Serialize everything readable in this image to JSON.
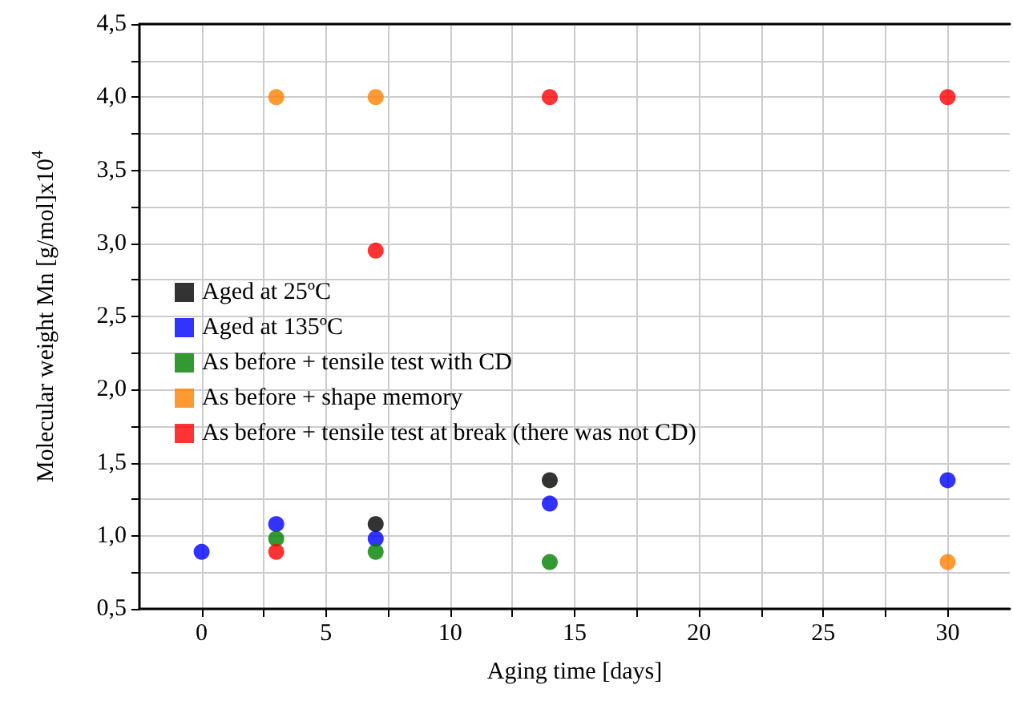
{
  "chart_data": {
    "type": "scatter",
    "xlabel": "Aging time [days]",
    "ylabel": "Molecular weight Mn [g/mol]x10$^{4}$",
    "xlim": [
      -2.5,
      32.5
    ],
    "xticks": [
      0,
      {
        "value": 2.5,
        "label": null
      },
      5,
      {
        "value": 7.5,
        "label": null
      },
      10,
      {
        "value": 12.5,
        "label": null
      },
      15,
      {
        "value": 17.5,
        "label": null
      },
      20,
      {
        "value": 22.5,
        "label": null
      },
      25,
      {
        "value": 27.5,
        "label": null
      },
      30
    ],
    "ylim": [
      0.5,
      4.5
    ],
    "yticks": [
      {
        "value": 0.5,
        "label": "0,5"
      },
      {
        "value": 0.75,
        "label": null
      },
      {
        "value": 1.0,
        "label": "1,0"
      },
      {
        "value": 1.25,
        "label": null
      },
      {
        "value": 1.5,
        "label": "1,5"
      },
      {
        "value": 1.75,
        "label": null
      },
      {
        "value": 2.0,
        "label": "2,0"
      },
      {
        "value": 2.25,
        "label": null
      },
      {
        "value": 2.5,
        "label": "2,5"
      },
      {
        "value": 2.75,
        "label": null
      },
      {
        "value": 3.0,
        "label": "3,0"
      },
      {
        "value": 3.25,
        "label": null
      },
      {
        "value": 3.5,
        "label": "3,5"
      },
      {
        "value": 3.75,
        "label": null
      },
      {
        "value": 4.0,
        "label": "4,0"
      },
      {
        "value": 4.25,
        "label": null
      },
      {
        "value": 4.5,
        "label": "4,5"
      }
    ],
    "grid": true,
    "legend": "left",
    "marker": "circle",
    "series": [
      {
        "name": "Aged at 25ºC",
        "color": "#000000",
        "x": [
          7,
          14
        ],
        "values": [
          1.08,
          1.38
        ]
      },
      {
        "name": "Aged at 135ºC",
        "color": "#0000ff",
        "x": [
          0,
          3,
          7,
          14,
          30
        ],
        "values": [
          0.89,
          1.08,
          0.98,
          1.22,
          1.38
        ]
      },
      {
        "name": "As before + tensile test with CD",
        "color": "#008000",
        "x": [
          3,
          7,
          14
        ],
        "values": [
          0.98,
          0.89,
          0.82
        ]
      },
      {
        "name": "As before + shape memory",
        "color": "#ff8000",
        "x": [
          3,
          7,
          30
        ],
        "values": [
          4.0,
          4.0,
          0.82
        ]
      },
      {
        "name": "As before + tensile test at break (there was not CD)",
        "color": "#ff0000",
        "x": [
          3,
          7,
          14,
          30
        ],
        "values": [
          0.89,
          2.95,
          4.0,
          4.0
        ]
      }
    ]
  }
}
